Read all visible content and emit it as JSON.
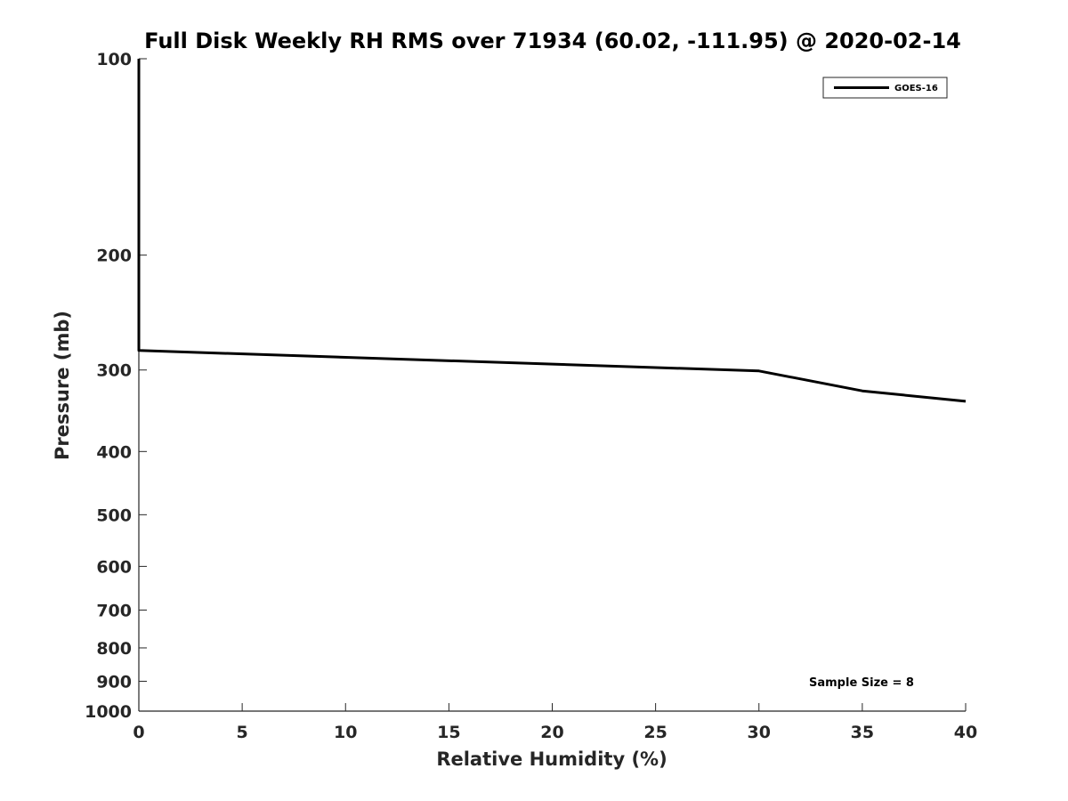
{
  "chart_data": {
    "type": "line",
    "title": "Full Disk Weekly RH RMS over 71934 (60.02, -111.95) @ 2020-02-14",
    "xlabel": "Relative Humidity (%)",
    "ylabel": "Pressure (mb)",
    "xlim": [
      0,
      40
    ],
    "ylim": [
      100,
      1000
    ],
    "y_scale": "log",
    "y_reversed": true,
    "xticks": [
      0,
      5,
      10,
      15,
      20,
      25,
      30,
      35,
      40
    ],
    "xtick_labels": [
      "0",
      "5",
      "10",
      "15",
      "20",
      "25",
      "30",
      "35",
      "40"
    ],
    "yticks": [
      100,
      200,
      300,
      400,
      500,
      600,
      700,
      800,
      900,
      1000
    ],
    "ytick_labels": [
      "100",
      "200",
      "300",
      "400",
      "500",
      "600",
      "700",
      "800",
      "900",
      "1000"
    ],
    "grid": false,
    "legend": {
      "position": "top-right"
    },
    "annotation": "Sample Size = 8",
    "series": [
      {
        "name": "GOES-16",
        "color": "#000000",
        "points": [
          {
            "x": 0.0,
            "y": 100
          },
          {
            "x": 0.0,
            "y": 150
          },
          {
            "x": 0.0,
            "y": 200
          },
          {
            "x": 0.0,
            "y": 250
          },
          {
            "x": 0.0,
            "y": 280
          },
          {
            "x": 30.0,
            "y": 301
          },
          {
            "x": 35.0,
            "y": 323
          },
          {
            "x": 40.0,
            "y": 335
          }
        ]
      }
    ]
  }
}
